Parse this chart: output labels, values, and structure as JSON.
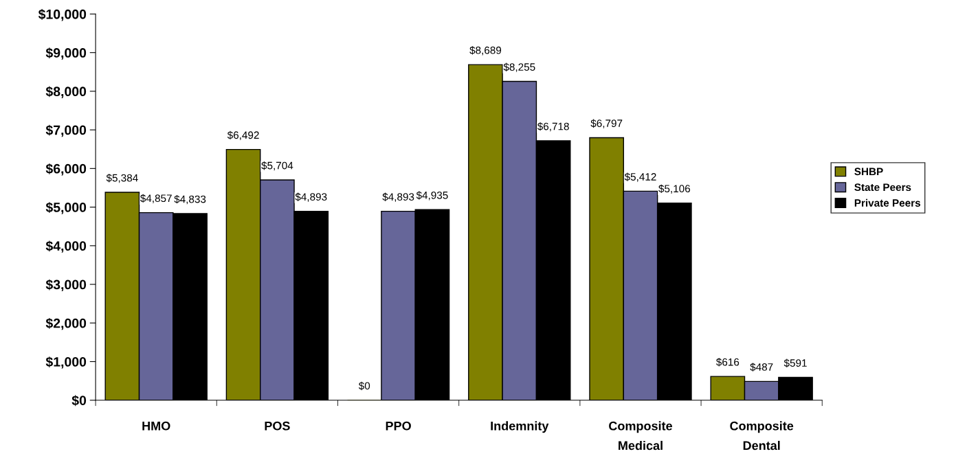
{
  "chart_data": {
    "type": "bar",
    "categories": [
      "HMO",
      "POS",
      "PPO",
      "Indemnity",
      "Composite\nMedical",
      "Composite\nDental"
    ],
    "series": [
      {
        "name": "SHBP",
        "color": "#808000",
        "values": [
          5384,
          6492,
          0,
          8689,
          6797,
          616
        ],
        "value_labels": [
          "$5,384",
          "$6,492",
          "$0",
          "$8,689",
          "$6,797",
          "$616"
        ]
      },
      {
        "name": "State Peers",
        "color": "#666699",
        "values": [
          4857,
          5704,
          4893,
          8255,
          5412,
          487
        ],
        "value_labels": [
          "$4,857",
          "$5,704",
          "$4,893",
          "$8,255",
          "$5,412",
          "$487"
        ]
      },
      {
        "name": "Private Peers",
        "color": "#000000",
        "values": [
          4833,
          4893,
          4935,
          6718,
          5106,
          591
        ],
        "value_labels": [
          "$4,833",
          "$4,893",
          "$4,935",
          "$6,718",
          "$5,106",
          "$591"
        ]
      }
    ],
    "ylim": [
      0,
      10000
    ],
    "yticks": [
      {
        "value": 0,
        "label": "$0"
      },
      {
        "value": 1000,
        "label": "$1,000"
      },
      {
        "value": 2000,
        "label": "$2,000"
      },
      {
        "value": 3000,
        "label": "$3,000"
      },
      {
        "value": 4000,
        "label": "$4,000"
      },
      {
        "value": 5000,
        "label": "$5,000"
      },
      {
        "value": 6000,
        "label": "$6,000"
      },
      {
        "value": 7000,
        "label": "$7,000"
      },
      {
        "value": 8000,
        "label": "$8,000"
      },
      {
        "value": 9000,
        "label": "$9,000"
      },
      {
        "value": 10000,
        "label": "$10,000"
      }
    ],
    "grid": false,
    "legend": "right"
  }
}
